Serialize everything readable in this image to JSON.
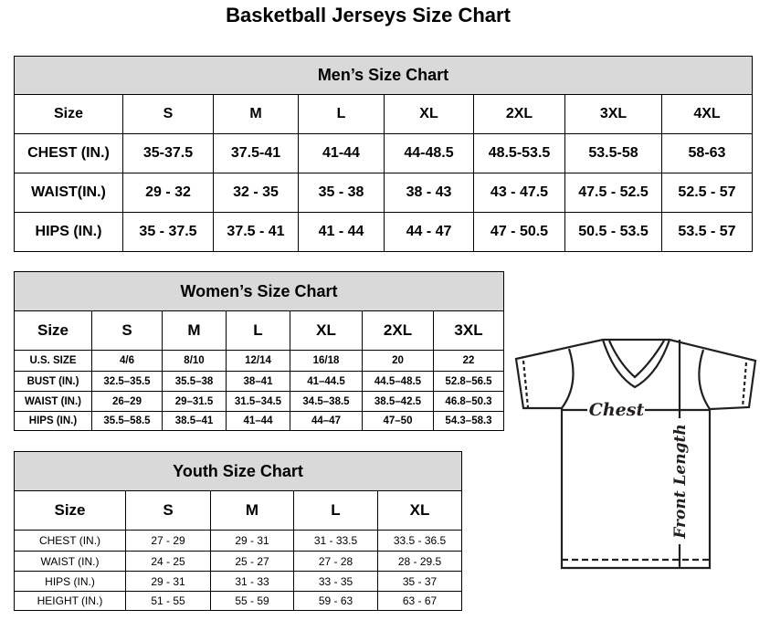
{
  "title": "Basketball Jerseys Size Chart",
  "men": {
    "title": "Men’s Size Chart",
    "header": [
      "Size",
      "S",
      "M",
      "L",
      "XL",
      "2XL",
      "3XL",
      "4XL"
    ],
    "rows": [
      [
        "CHEST (IN.)",
        "35-37.5",
        "37.5-41",
        "41-44",
        "44-48.5",
        "48.5-53.5",
        "53.5-58",
        "58-63"
      ],
      [
        "WAIST(IN.)",
        "29 - 32",
        "32 - 35",
        "35 - 38",
        "38 - 43",
        "43 - 47.5",
        "47.5 - 52.5",
        "52.5 - 57"
      ],
      [
        "HIPS (IN.)",
        "35 - 37.5",
        "37.5 - 41",
        "41 - 44",
        "44 - 47",
        "47 - 50.5",
        "50.5 - 53.5",
        "53.5 - 57"
      ]
    ]
  },
  "women": {
    "title": "Women’s Size Chart",
    "header": [
      "Size",
      "S",
      "M",
      "L",
      "XL",
      "2XL",
      "3XL"
    ],
    "rows": [
      [
        "U.S.  SIZE",
        "4/6",
        "8/10",
        "12/14",
        "16/18",
        "20",
        "22"
      ],
      [
        "BUST  (IN.)",
        "32.5–35.5",
        "35.5–38",
        "38–41",
        "41–44.5",
        "44.5–48.5",
        "52.8–56.5"
      ],
      [
        "WAIST  (IN.)",
        "26–29",
        "29–31.5",
        "31.5–34.5",
        "34.5–38.5",
        "38.5–42.5",
        "46.8–50.3"
      ],
      [
        "HIPS  (IN.)",
        "35.5–58.5",
        "38.5–41",
        "41–44",
        "44–47",
        "47–50",
        "54.3–58.3"
      ]
    ]
  },
  "youth": {
    "title": "Youth Size Chart",
    "header": [
      "Size",
      "S",
      "M",
      "L",
      "XL"
    ],
    "rows": [
      [
        "CHEST  (IN.)",
        "27  -  29",
        "29  -  31",
        "31  -  33.5",
        "33.5  -  36.5"
      ],
      [
        "WAIST  (IN.)",
        "24  -  25",
        "25  -  27",
        "27  -  28",
        "28  -  29.5"
      ],
      [
        "HIPS  (IN.)",
        "29  -  31",
        "31  -  33",
        "33  -  35",
        "35  -  37"
      ],
      [
        "HEIGHT  (IN.)",
        "51  -  55",
        "55  -  59",
        "59  -  63",
        "63  -  67"
      ]
    ]
  },
  "diagram": {
    "chest_label": "Chest",
    "length_label": "Front Length"
  },
  "colors": {
    "header_bg": "#d9d9d9",
    "line": "#231f20"
  }
}
